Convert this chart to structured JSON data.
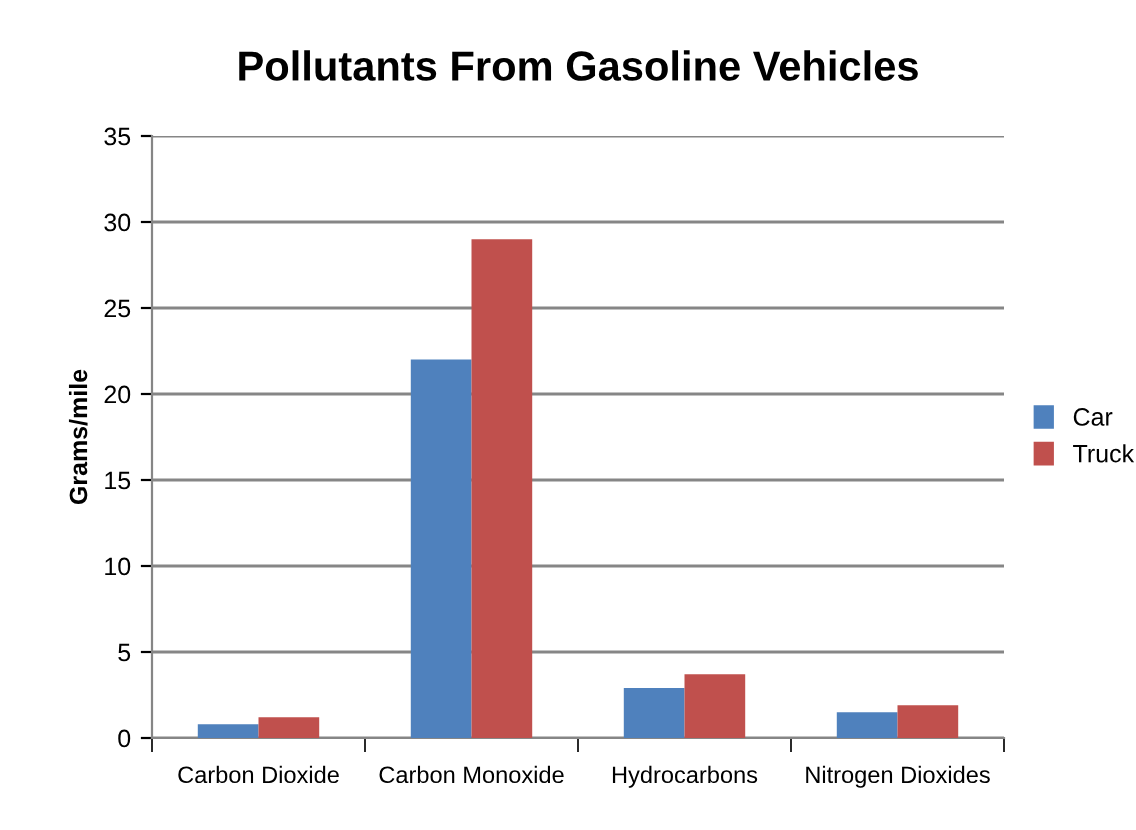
{
  "chart_data": {
    "type": "bar",
    "title": "Pollutants From Gasoline Vehicles",
    "ylabel": "Grams/mile",
    "categories": [
      "Carbon Dioxide",
      "Carbon Monoxide",
      "Hydrocarbons",
      "Nitrogen Dioxides"
    ],
    "series": [
      {
        "name": "Car",
        "color": "#4f81bd",
        "values": [
          0.8,
          22,
          2.9,
          1.5
        ]
      },
      {
        "name": "Truck",
        "color": "#c0504d",
        "values": [
          1.2,
          29,
          3.7,
          1.9
        ]
      }
    ],
    "ylim": [
      0,
      35
    ],
    "yticks": [
      0,
      5,
      10,
      15,
      20,
      25,
      30,
      35
    ],
    "grid": "y",
    "legend": "right"
  }
}
